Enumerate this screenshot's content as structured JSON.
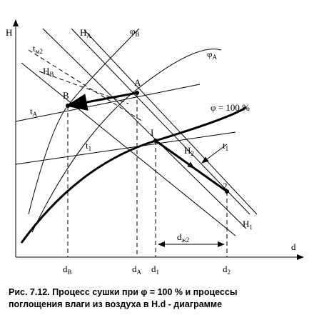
{
  "axes": {
    "y": "H",
    "x": "d"
  },
  "labels": {
    "H_A": {
      "text": "H",
      "sub": "A"
    },
    "phi_B": {
      "text": "φ",
      "sub": "B"
    },
    "t_M2": {
      "text": "t",
      "sub": "м2"
    },
    "H_B": {
      "text": "H",
      "sub": "B"
    },
    "phi_A": {
      "text": "φ",
      "sub": "A"
    },
    "point_B": "B",
    "point_A": "A",
    "t_A": {
      "text": "t",
      "sub": "A"
    },
    "phi_100": "φ = 100 %",
    "point_I": "I",
    "t_1_left": {
      "text": "t",
      "sub": "1"
    },
    "H_2": {
      "text": "H",
      "sub": "2"
    },
    "t_1_right": {
      "text": "t",
      "sub": "1"
    },
    "point_2": "2",
    "H_1": {
      "text": "H",
      "sub": "1"
    },
    "d_zh2": {
      "text": "d",
      "sub": "ж2"
    }
  },
  "x_marks": [
    {
      "text": "d",
      "sub": "B"
    },
    {
      "text": "d",
      "sub": "A"
    },
    {
      "text": "d",
      "sub": "1"
    },
    {
      "text": "d",
      "sub": "2"
    }
  ],
  "caption": [
    "Рис. 7.12. Процесс сушки  при φ = 100 % и процессы",
    "поглощения  влаги из воздуха  в H.d - диаграмме"
  ]
}
